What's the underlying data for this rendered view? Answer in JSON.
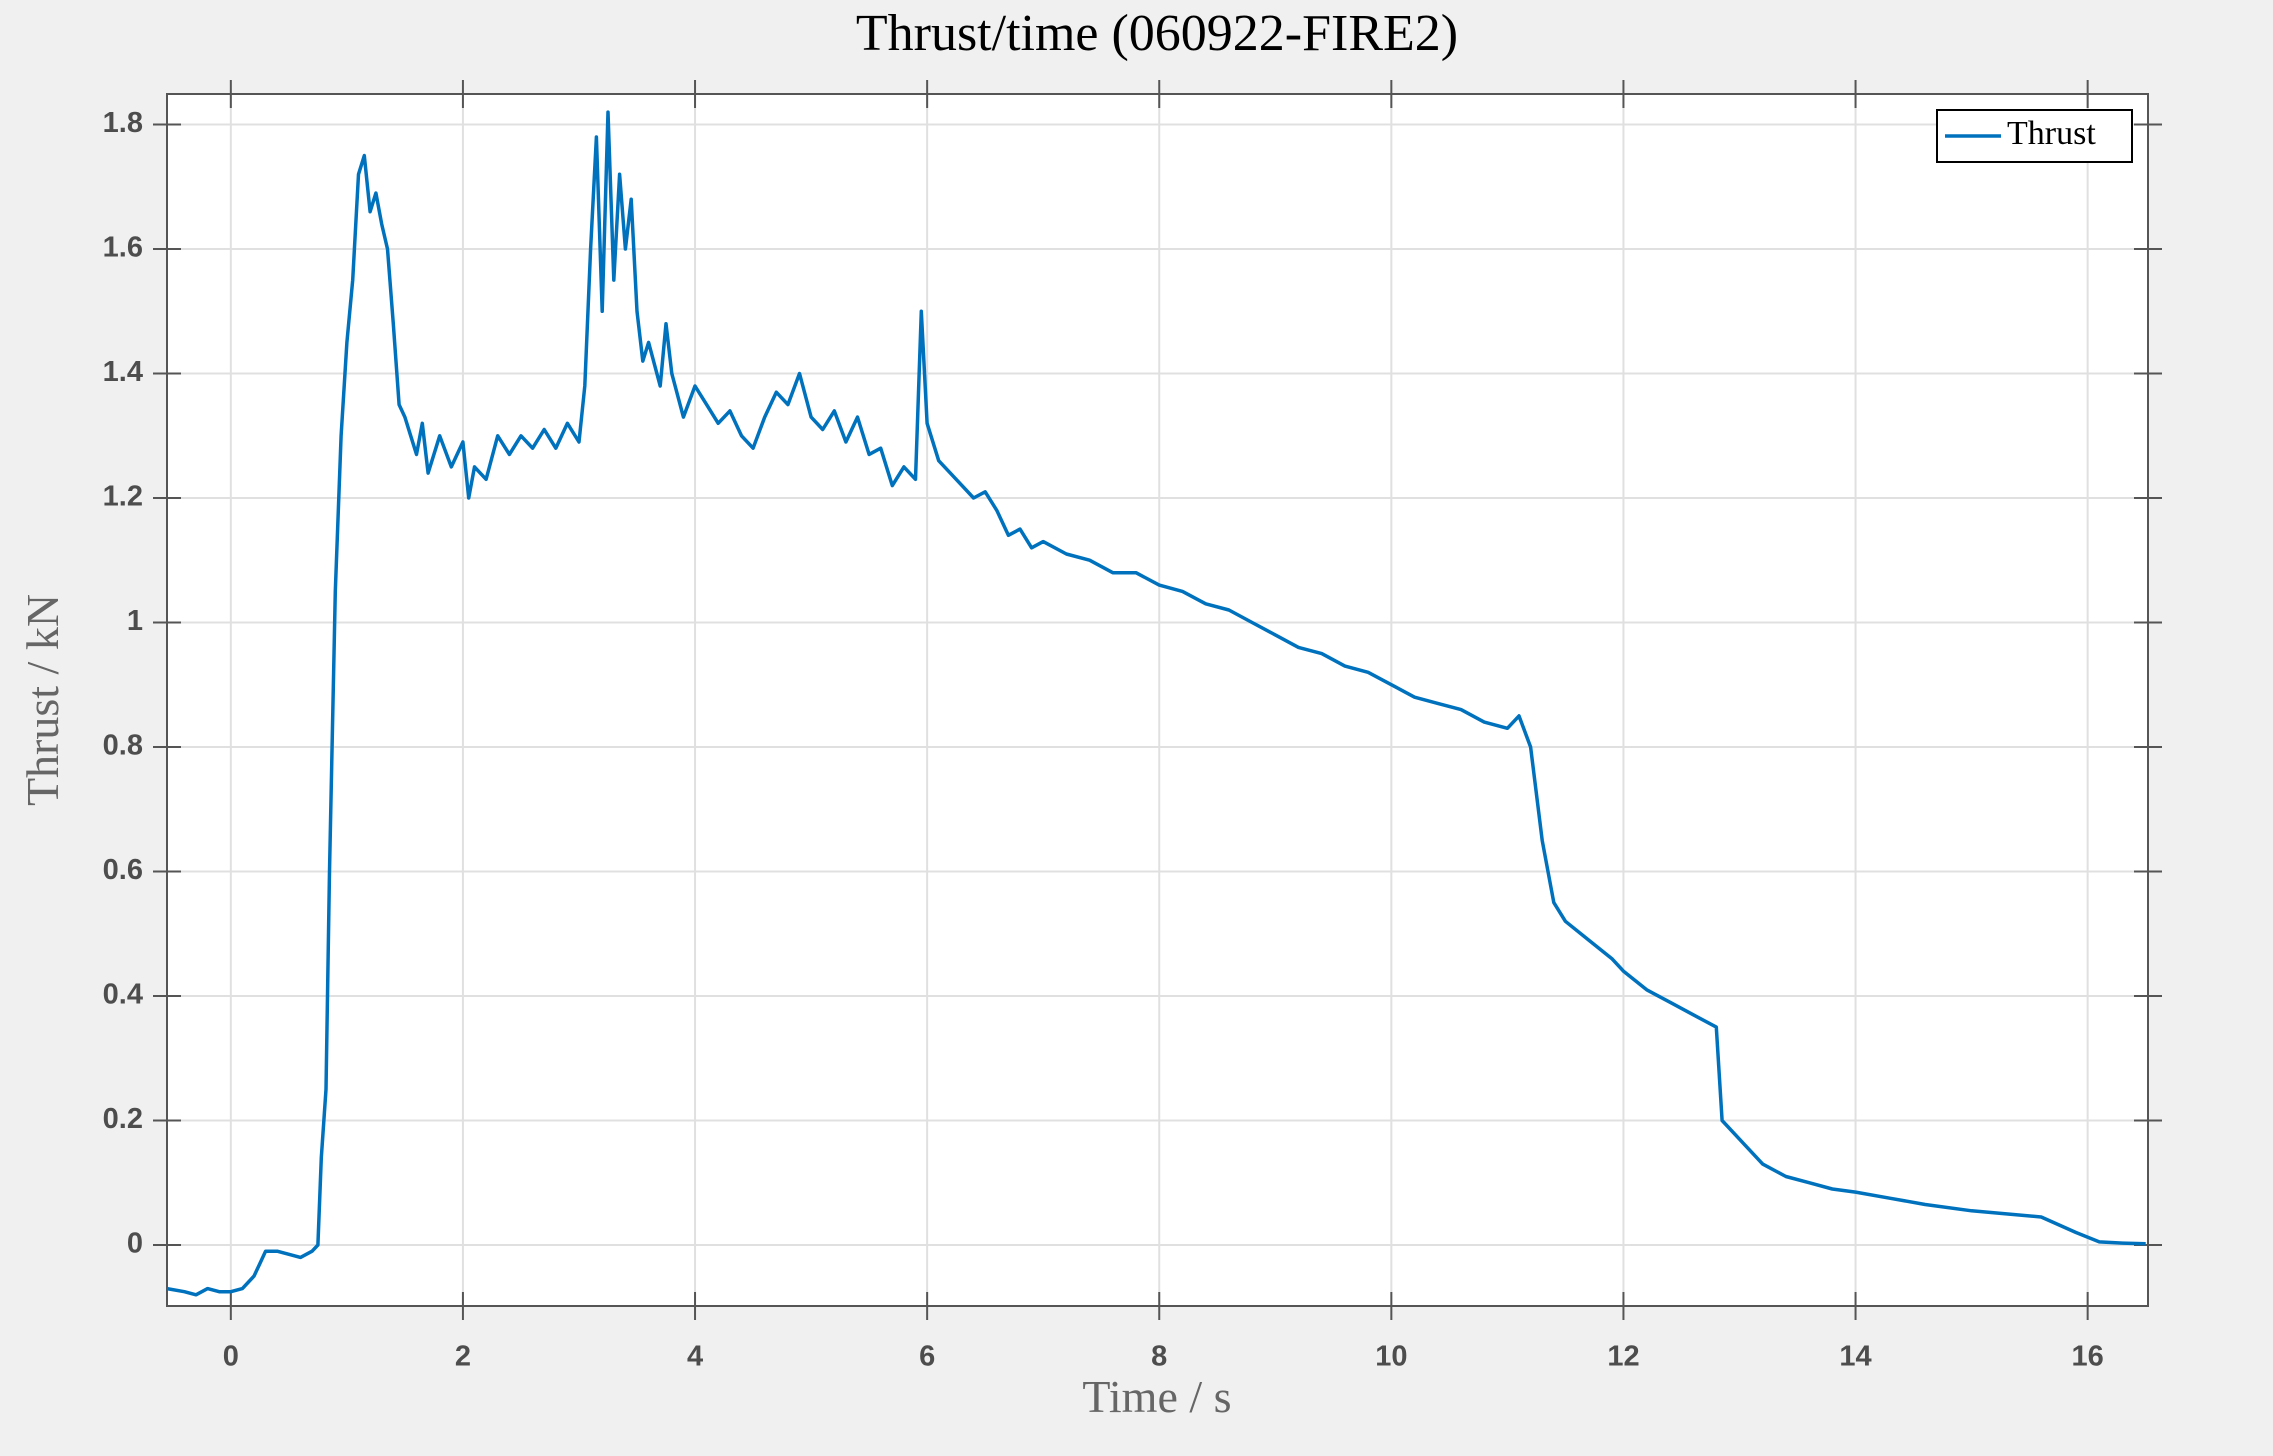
{
  "chart_data": {
    "type": "line",
    "title": "Thrust/time (060922-FIRE2)",
    "x_label": "Time / s",
    "y_label": "Thrust / kN",
    "x": [
      -0.55,
      -0.4,
      -0.3,
      -0.2,
      -0.1,
      0,
      0.1,
      0.2,
      0.25,
      0.3,
      0.4,
      0.5,
      0.6,
      0.7,
      0.75,
      0.78,
      0.82,
      0.85,
      0.9,
      0.95,
      1.0,
      1.05,
      1.1,
      1.15,
      1.2,
      1.25,
      1.3,
      1.35,
      1.4,
      1.45,
      1.5,
      1.55,
      1.6,
      1.65,
      1.7,
      1.8,
      1.9,
      2.0,
      2.05,
      2.1,
      2.2,
      2.3,
      2.4,
      2.5,
      2.6,
      2.7,
      2.8,
      2.9,
      3.0,
      3.05,
      3.1,
      3.15,
      3.2,
      3.25,
      3.3,
      3.35,
      3.4,
      3.45,
      3.5,
      3.55,
      3.6,
      3.7,
      3.75,
      3.8,
      3.9,
      4.0,
      4.1,
      4.2,
      4.3,
      4.4,
      4.5,
      4.6,
      4.7,
      4.8,
      4.9,
      5.0,
      5.1,
      5.2,
      5.3,
      5.4,
      5.5,
      5.6,
      5.7,
      5.8,
      5.9,
      5.95,
      6.0,
      6.1,
      6.2,
      6.3,
      6.4,
      6.5,
      6.6,
      6.7,
      6.8,
      6.9,
      7.0,
      7.2,
      7.4,
      7.6,
      7.8,
      8.0,
      8.2,
      8.4,
      8.6,
      8.8,
      9.0,
      9.2,
      9.4,
      9.6,
      9.8,
      10.0,
      10.2,
      10.4,
      10.6,
      10.8,
      11.0,
      11.1,
      11.2,
      11.3,
      11.4,
      11.5,
      11.7,
      11.9,
      12.0,
      12.2,
      12.4,
      12.6,
      12.8,
      12.85,
      13.0,
      13.2,
      13.4,
      13.6,
      13.8,
      14.0,
      14.3,
      14.6,
      15.0,
      15.3,
      15.6,
      15.9,
      16.1,
      16.3,
      16.5
    ],
    "series": [
      {
        "name": "Thrust",
        "color": "#0072bd",
        "values": [
          -0.07,
          -0.075,
          -0.08,
          -0.07,
          -0.075,
          -0.075,
          -0.07,
          -0.05,
          -0.03,
          -0.01,
          -0.01,
          -0.015,
          -0.02,
          -0.01,
          0.0,
          0.14,
          0.25,
          0.6,
          1.05,
          1.3,
          1.45,
          1.55,
          1.72,
          1.75,
          1.66,
          1.69,
          1.64,
          1.6,
          1.48,
          1.35,
          1.33,
          1.3,
          1.27,
          1.32,
          1.24,
          1.3,
          1.25,
          1.29,
          1.2,
          1.25,
          1.23,
          1.3,
          1.27,
          1.3,
          1.28,
          1.31,
          1.28,
          1.32,
          1.29,
          1.38,
          1.6,
          1.78,
          1.5,
          1.82,
          1.55,
          1.72,
          1.6,
          1.68,
          1.5,
          1.42,
          1.45,
          1.38,
          1.48,
          1.4,
          1.33,
          1.38,
          1.35,
          1.32,
          1.34,
          1.3,
          1.28,
          1.33,
          1.37,
          1.35,
          1.4,
          1.33,
          1.31,
          1.34,
          1.29,
          1.33,
          1.27,
          1.28,
          1.22,
          1.25,
          1.23,
          1.5,
          1.32,
          1.26,
          1.24,
          1.22,
          1.2,
          1.21,
          1.18,
          1.14,
          1.15,
          1.12,
          1.13,
          1.11,
          1.1,
          1.08,
          1.08,
          1.06,
          1.05,
          1.03,
          1.02,
          1.0,
          0.98,
          0.96,
          0.95,
          0.93,
          0.92,
          0.9,
          0.88,
          0.87,
          0.86,
          0.84,
          0.83,
          0.85,
          0.8,
          0.65,
          0.55,
          0.52,
          0.49,
          0.46,
          0.44,
          0.41,
          0.39,
          0.37,
          0.35,
          0.2,
          0.17,
          0.13,
          0.11,
          0.1,
          0.09,
          0.085,
          0.075,
          0.065,
          0.055,
          0.05,
          0.045,
          0.02,
          0.005,
          0.003,
          0.002
        ]
      }
    ],
    "xlim": [
      -0.55,
      16.52
    ],
    "ylim": [
      -0.098,
      1.849
    ],
    "xticks": [
      0,
      2,
      4,
      6,
      8,
      10,
      12,
      14,
      16
    ],
    "yticks": [
      0,
      0.2,
      0.4,
      0.6,
      0.8,
      1,
      1.2,
      1.4,
      1.6,
      1.8
    ],
    "grid": true,
    "legend": "upper right"
  }
}
